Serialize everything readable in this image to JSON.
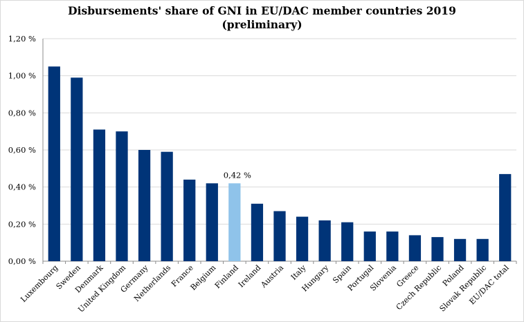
{
  "chart_data": {
    "type": "bar",
    "title_line1": "Disbursements' share of GNI in EU/DAC member countries 2019",
    "title_line2": "(preliminary)",
    "categories": [
      "Luxembourg",
      "Sweden",
      "Denmark",
      "United Kingdom",
      "Germany",
      "Netherlands",
      "France",
      "Belgium",
      "Finland",
      "Ireland",
      "Austria",
      "Italy",
      "Hungary",
      "Spain",
      "Portugal",
      "Slovenia",
      "Greece",
      "Czech Republic",
      "Poland",
      "Slovak Republic",
      "EU/DAC total"
    ],
    "values": [
      1.05,
      0.99,
      0.71,
      0.7,
      0.6,
      0.59,
      0.44,
      0.42,
      0.42,
      0.31,
      0.27,
      0.24,
      0.22,
      0.21,
      0.16,
      0.16,
      0.14,
      0.13,
      0.12,
      0.12,
      0.47
    ],
    "highlight_index": 8,
    "data_labels": [
      {
        "index": 8,
        "text": "0,42 %"
      }
    ],
    "ylim": [
      0,
      1.2
    ],
    "yticks": [
      0,
      0.2,
      0.4,
      0.6,
      0.8,
      1.0,
      1.2
    ],
    "ytick_labels": [
      "0,00 %",
      "0,20 %",
      "0,40 %",
      "0,60 %",
      "0,80 %",
      "1,00 %",
      "1,20 %"
    ],
    "grid": true,
    "colors": {
      "bar": "#003478",
      "highlight": "#8fc3ea",
      "grid": "#d9d9d9",
      "axis": "#8c8c8c"
    }
  }
}
